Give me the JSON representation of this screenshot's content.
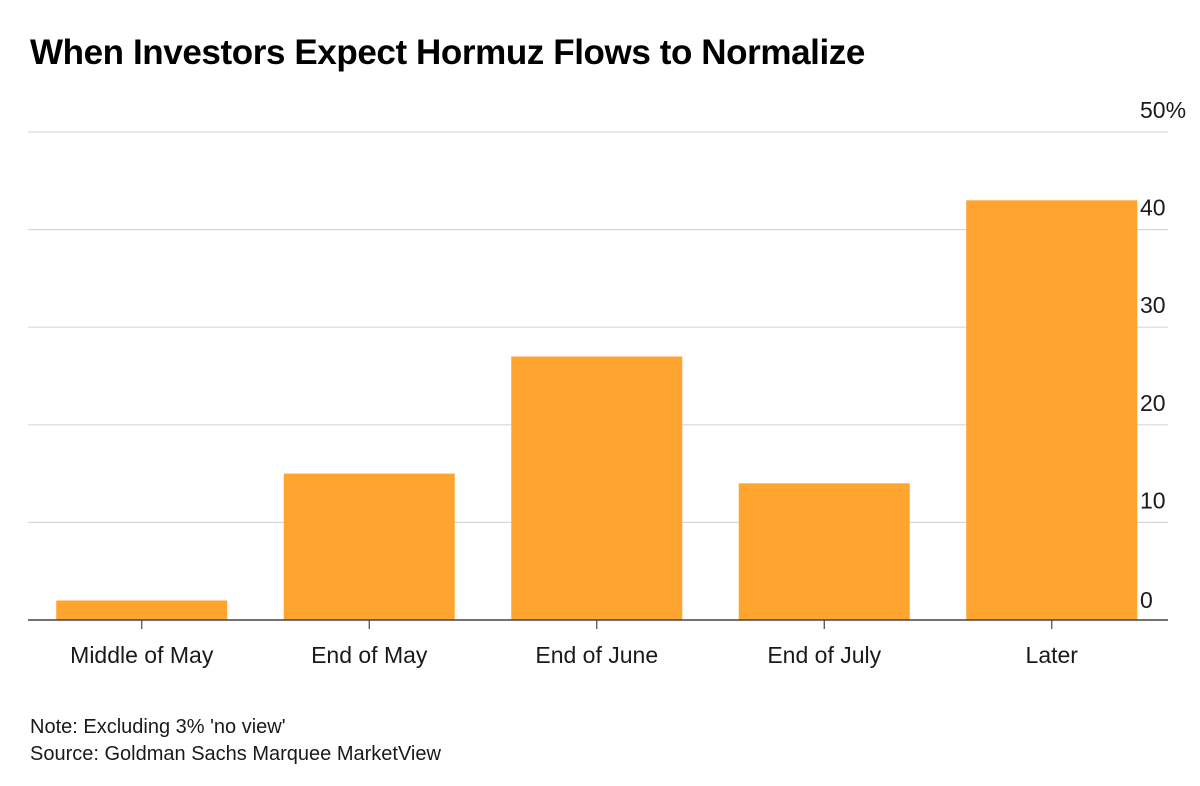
{
  "chart_data": {
    "type": "bar",
    "title": "When Investors Expect Hormuz Flows to Normalize",
    "categories": [
      "Middle of May",
      "End of May",
      "End of June",
      "End of July",
      "Later"
    ],
    "values": [
      2,
      15,
      27,
      14,
      43
    ],
    "ylim": [
      0,
      50
    ],
    "yticks": [
      0,
      10,
      20,
      30,
      40,
      50
    ],
    "ytick_labels": [
      "0",
      "10",
      "20",
      "30",
      "40",
      "50%"
    ],
    "y_axis_position": "right",
    "grid": true,
    "xlabel": "",
    "ylabel": "",
    "legend": "none"
  },
  "colors": {
    "bar": "#fea42f",
    "grid": "#d9d9d9",
    "axis": "#444444"
  },
  "notes": {
    "note": "Note: Excluding 3% 'no view'",
    "source": "Source: Goldman Sachs Marquee MarketView"
  }
}
